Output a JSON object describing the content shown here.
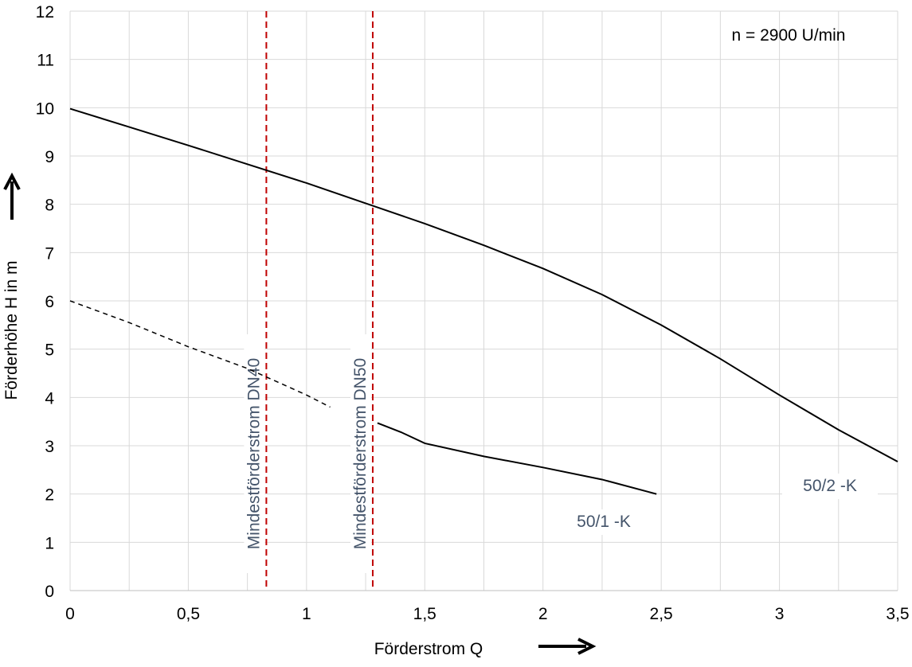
{
  "chart_data": {
    "type": "line",
    "annotation": "n = 2900   U/min",
    "xlabel": "Förderstrom Q",
    "ylabel": "Förderhöhe H in m",
    "xlim": [
      0,
      3.5
    ],
    "ylim": [
      0,
      12
    ],
    "xticks": [
      0,
      {
        "value": 0.5,
        "label": "0,5"
      },
      1,
      {
        "value": 1.5,
        "label": "1,5"
      },
      2,
      {
        "value": 2.5,
        "label": "2,5"
      },
      3,
      {
        "value": 3.5,
        "label": "3,5"
      }
    ],
    "x_minor_grid": [
      0.25,
      0.75,
      1.25,
      1.75,
      2.25,
      2.75,
      3.25
    ],
    "yticks": [
      0,
      1,
      2,
      3,
      4,
      5,
      6,
      7,
      8,
      9,
      10,
      11,
      12
    ],
    "grid": true,
    "series": [
      {
        "name": "50/2 -K",
        "color": "#000000",
        "dashed": false,
        "x": [
          0,
          0.25,
          0.5,
          0.75,
          1,
          1.25,
          1.5,
          1.75,
          2,
          2.25,
          2.5,
          2.75,
          3,
          3.25,
          3.5
        ],
        "values": [
          9.98,
          9.6,
          9.22,
          8.83,
          8.44,
          8.02,
          7.6,
          7.15,
          6.67,
          6.13,
          5.5,
          4.8,
          4.05,
          3.33,
          2.67
        ]
      },
      {
        "color": "#000000",
        "dashed": true,
        "x": [
          0,
          0.25,
          0.5,
          0.75,
          1,
          1.1
        ],
        "values": [
          6.0,
          5.55,
          5.05,
          4.6,
          4.05,
          3.8
        ]
      },
      {
        "name": "50/1 -K",
        "color": "#000000",
        "dashed": false,
        "x": [
          1.3,
          1.4,
          1.5,
          1.75,
          2,
          2.25,
          2.48
        ],
        "values": [
          3.47,
          3.28,
          3.05,
          2.78,
          2.55,
          2.3,
          2.0
        ]
      }
    ],
    "reference_lines": [
      {
        "x": 0.83,
        "label": "Mindestförderstrom DN40",
        "color": "#c00000"
      },
      {
        "x": 1.28,
        "label": "Mindestförderstrom DN50",
        "color": "#c00000"
      }
    ]
  }
}
